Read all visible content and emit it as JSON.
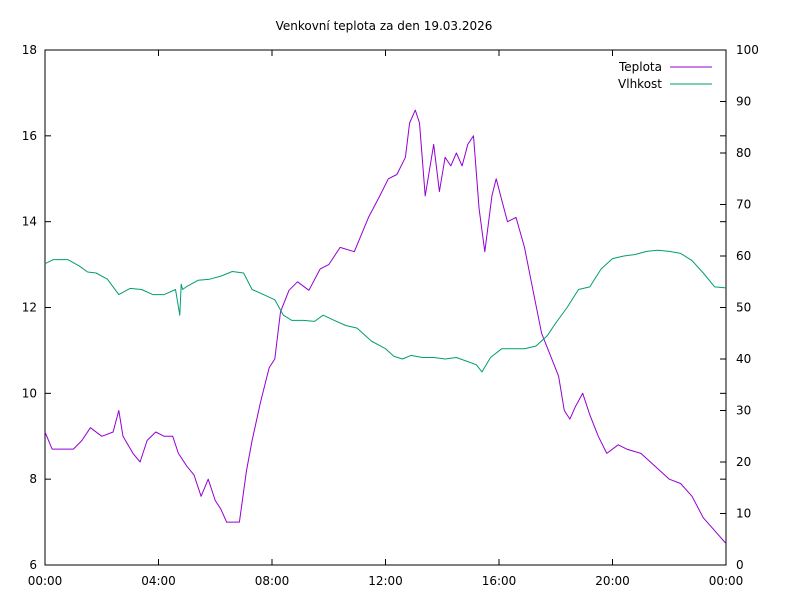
{
  "chart_data": {
    "type": "line",
    "title": "Venkovní teplota za den 19.03.2026",
    "x_range": [
      "00:00",
      "24:00"
    ],
    "x_ticks": [
      "00:00",
      "04:00",
      "08:00",
      "12:00",
      "16:00",
      "20:00",
      "00:00"
    ],
    "y_left": {
      "range": [
        6,
        18
      ],
      "ticks": [
        6,
        8,
        10,
        12,
        14,
        16,
        18
      ]
    },
    "y_right": {
      "range": [
        0,
        100
      ],
      "ticks": [
        0,
        10,
        20,
        30,
        40,
        50,
        60,
        70,
        80,
        90,
        100
      ]
    },
    "grid": false,
    "legend": "top-right",
    "colors": {
      "Teplota": "#9400d3",
      "Vlhkost": "#009e73"
    },
    "series": [
      {
        "name": "Teplota",
        "axis": "left",
        "x": [
          0,
          0.25,
          0.6,
          1,
          1.3,
          1.6,
          2,
          2.4,
          2.6,
          2.75,
          3.1,
          3.35,
          3.6,
          3.9,
          4.2,
          4.5,
          4.7,
          5,
          5.25,
          5.5,
          5.75,
          6,
          6.2,
          6.4,
          6.6,
          6.85,
          7.1,
          7.3,
          7.6,
          7.9,
          8.1,
          8.3,
          8.6,
          8.9,
          9.3,
          9.7,
          10,
          10.4,
          10.9,
          11.4,
          11.8,
          12.1,
          12.4,
          12.7,
          12.85,
          13.05,
          13.2,
          13.4,
          13.7,
          13.9,
          14.1,
          14.3,
          14.5,
          14.7,
          14.9,
          15.1,
          15.3,
          15.5,
          15.75,
          15.9,
          16.1,
          16.3,
          16.6,
          16.9,
          17.2,
          17.5,
          17.8,
          18.1,
          18.3,
          18.5,
          18.7,
          18.95,
          19.2,
          19.5,
          19.8,
          20.2,
          20.5,
          21,
          21.5,
          22,
          22.4,
          22.8,
          23.2,
          23.6,
          24
        ],
        "values": [
          9.1,
          8.7,
          8.7,
          8.7,
          8.9,
          9.2,
          9.0,
          9.1,
          9.6,
          9.0,
          8.6,
          8.4,
          8.9,
          9.1,
          9.0,
          9.0,
          8.6,
          8.3,
          8.1,
          7.6,
          8.0,
          7.5,
          7.3,
          7.0,
          7.0,
          7.0,
          8.2,
          8.9,
          9.8,
          10.6,
          10.8,
          11.9,
          12.4,
          12.6,
          12.4,
          12.9,
          13.0,
          13.4,
          13.3,
          14.1,
          14.6,
          15.0,
          15.1,
          15.5,
          16.3,
          16.6,
          16.3,
          14.6,
          15.8,
          14.7,
          15.5,
          15.3,
          15.6,
          15.3,
          15.8,
          16.0,
          14.3,
          13.3,
          14.6,
          15.0,
          14.5,
          14.0,
          14.1,
          13.4,
          12.4,
          11.4,
          10.9,
          10.4,
          9.6,
          9.4,
          9.7,
          10.0,
          9.5,
          9.0,
          8.6,
          8.8,
          8.7,
          8.6,
          8.3,
          8.0,
          7.9,
          7.6,
          7.1,
          6.8,
          6.5
        ]
      },
      {
        "name": "Vlhkost",
        "axis": "right",
        "x": [
          0,
          0.3,
          0.8,
          1.2,
          1.5,
          1.8,
          2.2,
          2.6,
          3.0,
          3.4,
          3.8,
          4.2,
          4.6,
          4.75,
          4.8,
          4.85,
          5.0,
          5.4,
          5.8,
          6.2,
          6.6,
          7.0,
          7.3,
          7.7,
          8.1,
          8.4,
          8.7,
          9.1,
          9.5,
          9.8,
          10.2,
          10.6,
          11.0,
          11.5,
          12.0,
          12.3,
          12.6,
          12.9,
          13.3,
          13.7,
          14.1,
          14.5,
          14.9,
          15.2,
          15.4,
          15.7,
          16.1,
          16.5,
          16.9,
          17.3,
          17.7,
          18.0,
          18.4,
          18.8,
          19.2,
          19.6,
          20.0,
          20.4,
          20.8,
          21.2,
          21.6,
          22.0,
          22.4,
          22.8,
          23.2,
          23.6,
          24
        ],
        "values": [
          58.5,
          59.3,
          59.3,
          58.1,
          56.9,
          56.7,
          55.5,
          52.5,
          53.7,
          53.5,
          52.5,
          52.5,
          53.5,
          48.5,
          54.5,
          53.5,
          54.1,
          55.3,
          55.5,
          56.1,
          57.0,
          56.7,
          53.5,
          52.5,
          51.5,
          48.5,
          47.5,
          47.5,
          47.3,
          48.5,
          47.5,
          46.5,
          46.0,
          43.5,
          42.0,
          40.5,
          40.0,
          40.7,
          40.3,
          40.3,
          40.0,
          40.3,
          39.5,
          38.9,
          37.5,
          40.3,
          42.0,
          42.0,
          42.0,
          42.5,
          44.5,
          47.0,
          50.0,
          53.5,
          54.0,
          57.5,
          59.5,
          60.0,
          60.3,
          60.9,
          61.1,
          60.9,
          60.5,
          59.1,
          56.7,
          54.0,
          53.8
        ]
      }
    ]
  }
}
